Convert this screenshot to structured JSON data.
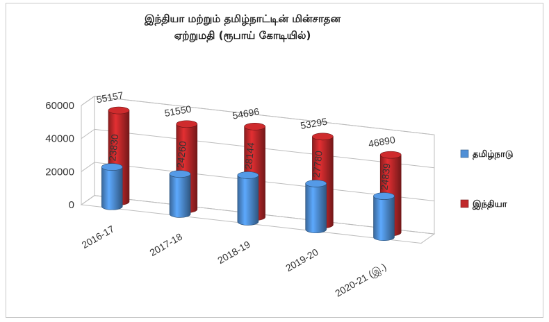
{
  "chart_data": {
    "type": "bar",
    "title": "இந்தியா மற்றும் தமிழ்நாட்டின் மின்சாதன ஏற்றுமதி (ரூபாய் கோடியில்)",
    "title_lines": [
      "இந்தியா மற்றும் தமிழ்நாட்டின் மின்சாதன",
      "ஏற்றுமதி (ரூபாய் கோடியில்)"
    ],
    "categories": [
      "2016-17",
      "2017-18",
      "2018-19",
      "2019-20",
      "2020-21 (இ.)"
    ],
    "series": [
      {
        "name": "தமிழ்நாடு",
        "values": [
          23830,
          24260,
          28144,
          27780,
          24839
        ],
        "color": "#4f8fd6"
      },
      {
        "name": "இந்தியா",
        "values": [
          55157,
          51550,
          54696,
          53295,
          46890
        ],
        "color": "#c0282a"
      }
    ],
    "ylim": [
      0,
      60000
    ],
    "yticks": [
      "0",
      "20000",
      "40000",
      "60000"
    ],
    "grid": true,
    "legend": "right",
    "style": "3d-cylinder"
  }
}
